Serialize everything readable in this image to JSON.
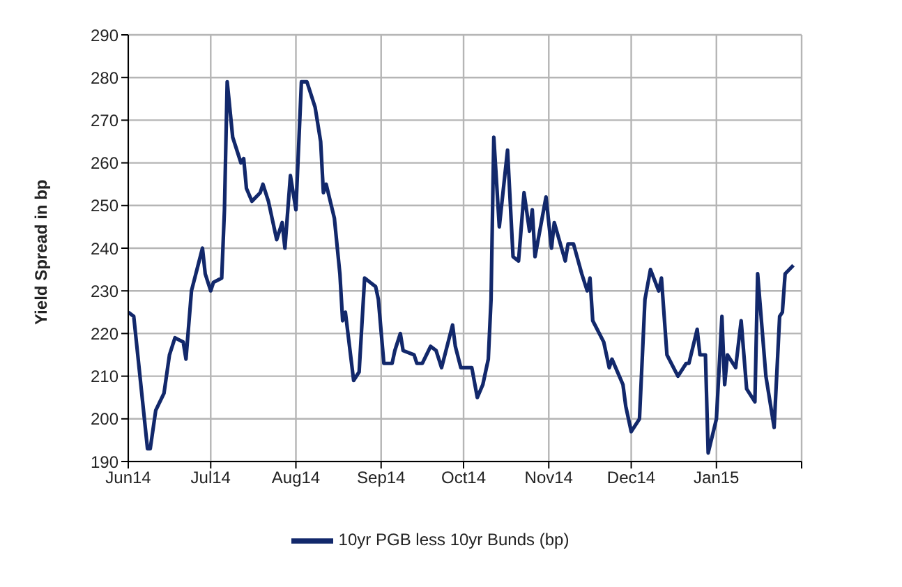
{
  "chart_data": {
    "type": "line",
    "ylabel": "Yield Spread in bp",
    "xlim": [
      "2014-06-01",
      "2015-02-01"
    ],
    "xticks": [
      {
        "value": "2014-06-01",
        "label": "Jun14"
      },
      {
        "value": "2014-07-01",
        "label": "Jul14"
      },
      {
        "value": "2014-08-01",
        "label": "Aug14"
      },
      {
        "value": "2014-09-01",
        "label": "Sep14"
      },
      {
        "value": "2014-10-01",
        "label": "Oct14"
      },
      {
        "value": "2014-11-01",
        "label": "Nov14"
      },
      {
        "value": "2014-12-01",
        "label": "Dec14"
      },
      {
        "value": "2015-01-01",
        "label": "Jan15"
      },
      {
        "value": "2015-02-01",
        "label": null
      }
    ],
    "ylim": [
      190,
      290
    ],
    "yticks": [
      190,
      200,
      210,
      220,
      230,
      240,
      250,
      260,
      270,
      280,
      290
    ],
    "grid": true,
    "legend": "bottom",
    "marker": "none",
    "line_style": "solid",
    "x": [
      "2014-06-01",
      "2014-06-03",
      "2014-06-08",
      "2014-06-09",
      "2014-06-11",
      "2014-06-14",
      "2014-06-16",
      "2014-06-18",
      "2014-06-21",
      "2014-06-22",
      "2014-06-24",
      "2014-06-28",
      "2014-06-29",
      "2014-07-01",
      "2014-07-02",
      "2014-07-05",
      "2014-07-06",
      "2014-07-07",
      "2014-07-09",
      "2014-07-12",
      "2014-07-13",
      "2014-07-14",
      "2014-07-16",
      "2014-07-19",
      "2014-07-20",
      "2014-07-22",
      "2014-07-25",
      "2014-07-27",
      "2014-07-28",
      "2014-07-30",
      "2014-08-01",
      "2014-08-03",
      "2014-08-05",
      "2014-08-08",
      "2014-08-10",
      "2014-08-11",
      "2014-08-12",
      "2014-08-15",
      "2014-08-17",
      "2014-08-18",
      "2014-08-19",
      "2014-08-22",
      "2014-08-24",
      "2014-08-26",
      "2014-08-28",
      "2014-08-30",
      "2014-08-31",
      "2014-09-02",
      "2014-09-05",
      "2014-09-06",
      "2014-09-08",
      "2014-09-09",
      "2014-09-13",
      "2014-09-14",
      "2014-09-16",
      "2014-09-19",
      "2014-09-21",
      "2014-09-23",
      "2014-09-27",
      "2014-09-28",
      "2014-09-30",
      "2014-10-03",
      "2014-10-04",
      "2014-10-06",
      "2014-10-08",
      "2014-10-10",
      "2014-10-11",
      "2014-10-12",
      "2014-10-14",
      "2014-10-17",
      "2014-10-19",
      "2014-10-21",
      "2014-10-23",
      "2014-10-25",
      "2014-10-26",
      "2014-10-27",
      "2014-10-31",
      "2014-11-02",
      "2014-11-03",
      "2014-11-07",
      "2014-11-08",
      "2014-11-10",
      "2014-11-13",
      "2014-11-15",
      "2014-11-16",
      "2014-11-17",
      "2014-11-21",
      "2014-11-23",
      "2014-11-24",
      "2014-11-28",
      "2014-11-29",
      "2014-12-01",
      "2014-12-04",
      "2014-12-06",
      "2014-12-08",
      "2014-12-11",
      "2014-12-12",
      "2014-12-14",
      "2014-12-18",
      "2014-12-21",
      "2014-12-22",
      "2014-12-25",
      "2014-12-26",
      "2014-12-28",
      "2014-12-29",
      "2015-01-01",
      "2015-01-03",
      "2015-01-04",
      "2015-01-05",
      "2015-01-08",
      "2015-01-10",
      "2015-01-12",
      "2015-01-15",
      "2015-01-16",
      "2015-01-19",
      "2015-01-22",
      "2015-01-24",
      "2015-01-25",
      "2015-01-26",
      "2015-01-29"
    ],
    "series": [
      {
        "name": "10yr PGB less 10yr Bunds (bp)",
        "color": "#12286b",
        "values": [
          225,
          224,
          193,
          193,
          202,
          206,
          215,
          219,
          218,
          214,
          230,
          240,
          234,
          230,
          232,
          233,
          249,
          279,
          266,
          260,
          261,
          254,
          251,
          253,
          255,
          251,
          242,
          246,
          240,
          257,
          249,
          279,
          279,
          273,
          265,
          253,
          255,
          247,
          234,
          223,
          225,
          209,
          211,
          233,
          232,
          231,
          228,
          213,
          213,
          216,
          220,
          216,
          215,
          213,
          213,
          217,
          216,
          212,
          222,
          217,
          212,
          212,
          212,
          205,
          208,
          214,
          228,
          266,
          245,
          263,
          238,
          237,
          253,
          244,
          249,
          238,
          252,
          240,
          246,
          237,
          241,
          241,
          234,
          230,
          233,
          223,
          218,
          212,
          214,
          208,
          203,
          197,
          200,
          228,
          235,
          230,
          233,
          215,
          210,
          213,
          213,
          221,
          215,
          215,
          192,
          200,
          224,
          208,
          215,
          212,
          223,
          207,
          204,
          234,
          210,
          198,
          224,
          225,
          234,
          236
        ]
      }
    ]
  }
}
